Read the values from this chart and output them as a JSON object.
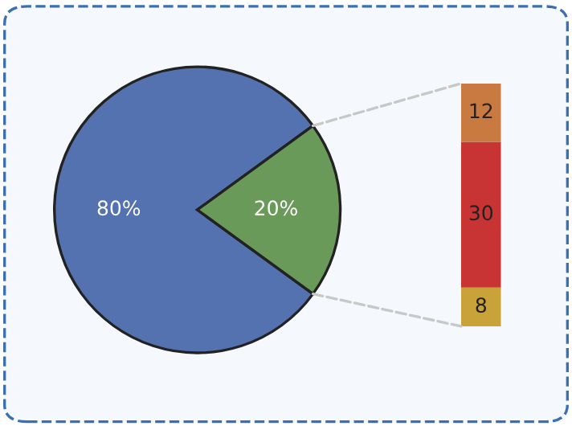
{
  "chart_data": [
    {
      "type": "pie",
      "categories": [
        null,
        null
      ],
      "values": [
        80,
        20
      ],
      "colors": [
        "#5472b0",
        "#6a9a5a"
      ],
      "value_labels": [
        "80%",
        "20%"
      ]
    },
    {
      "type": "bar",
      "stacked": true,
      "categories": [
        null
      ],
      "data_labels": true,
      "series": [
        {
          "color": "#c9a23a",
          "values": [
            8
          ]
        },
        {
          "color": "#c83434",
          "values": [
            30
          ]
        },
        {
          "color": "#c87a40",
          "values": [
            12
          ]
        }
      ]
    }
  ]
}
